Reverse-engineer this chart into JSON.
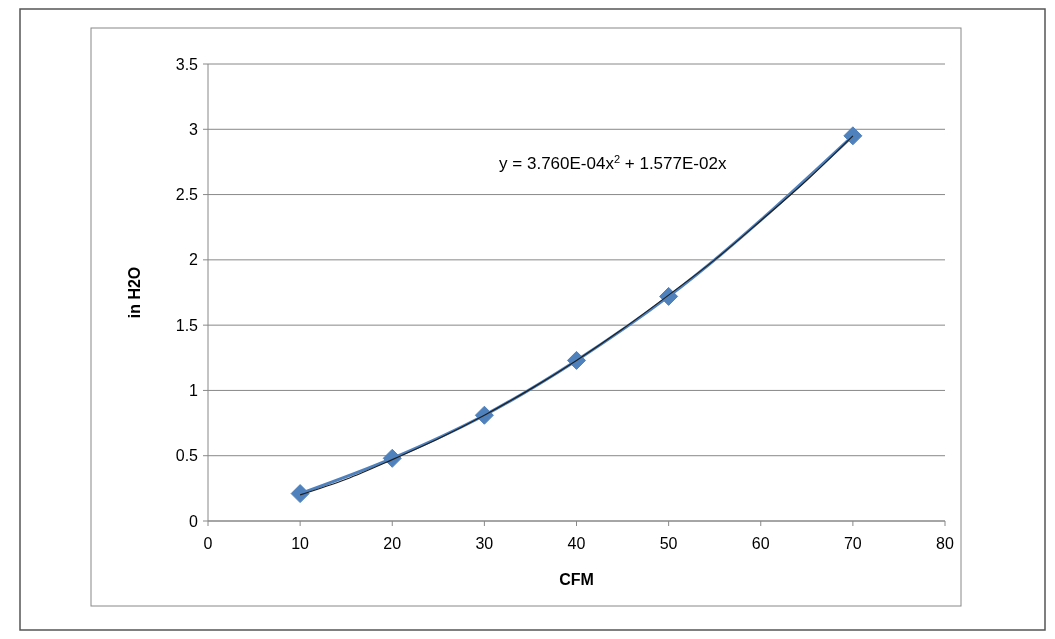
{
  "chart_data": {
    "type": "line",
    "xlabel": "CFM",
    "ylabel": "in H2O",
    "xlim": [
      0,
      80
    ],
    "xticks": [
      0,
      10,
      20,
      30,
      40,
      50,
      60,
      70,
      80
    ],
    "ylim": [
      0,
      3.5
    ],
    "yticks": [
      0,
      0.5,
      1,
      1.5,
      2,
      2.5,
      3,
      3.5
    ],
    "grid": "y",
    "line_style": "solid",
    "annotations": [
      "y = 3.760E-04x$^{2}$ + 1.577E-02x"
    ],
    "series": [
      {
        "color": "#4f81bd",
        "marker": "diamond",
        "x": [
          10,
          20,
          30,
          40,
          50,
          70
        ],
        "values": [
          0.21,
          0.48,
          0.81,
          1.23,
          1.72,
          2.95
        ]
      },
      {
        "type": "line",
        "color": "#1f1f1f",
        "marker": "none",
        "x": [
          10,
          15,
          20,
          25,
          30,
          35,
          40,
          45,
          50,
          55,
          60,
          65,
          70
        ],
        "values": [
          0.2,
          0.32,
          0.47,
          0.63,
          0.81,
          1.01,
          1.23,
          1.47,
          1.73,
          2.0,
          2.3,
          2.61,
          2.95
        ]
      }
    ]
  }
}
